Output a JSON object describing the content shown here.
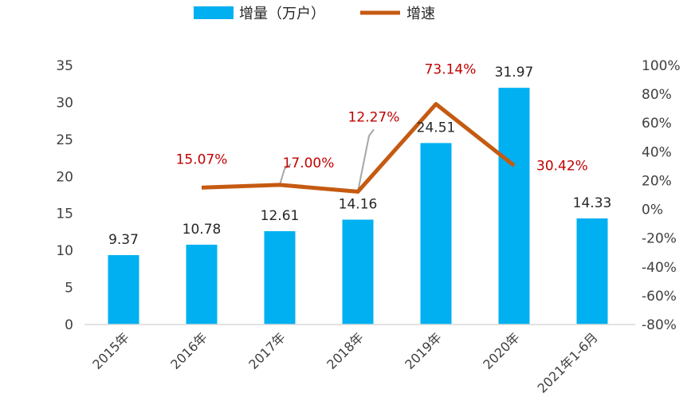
{
  "legend": {
    "bar_label": "增量（万户）",
    "line_label": "增速"
  },
  "colors": {
    "bar": "#00b0f0",
    "line": "#c55a11",
    "rate_label": "#c00000",
    "leader": "#a6a6a6",
    "axis": "#d9d9d9"
  },
  "chart_data": {
    "type": "bar",
    "categories": [
      "2015年",
      "2016年",
      "2017年",
      "2018年",
      "2019年",
      "2020年",
      "2021年1-6月"
    ],
    "series": [
      {
        "name": "增量（万户）",
        "type": "bar",
        "axis": "left",
        "values": [
          9.37,
          10.78,
          12.61,
          14.16,
          24.51,
          31.97,
          14.33
        ],
        "labels": [
          "9.37",
          "10.78",
          "12.61",
          "14.16",
          "24.51",
          "31.97",
          "14.33"
        ]
      },
      {
        "name": "增速",
        "type": "line",
        "axis": "right",
        "values": [
          null,
          15.07,
          17.0,
          12.27,
          73.14,
          30.42,
          null
        ],
        "labels": [
          "",
          "15.07%",
          "17.00%",
          "12.27%",
          "73.14%",
          "30.42%",
          ""
        ]
      }
    ],
    "y_left": {
      "min": 0,
      "max": 35,
      "ticks": [
        "0",
        "5",
        "10",
        "15",
        "20",
        "25",
        "30",
        "35"
      ]
    },
    "y_right": {
      "min": -80,
      "max": 100,
      "ticks": [
        "-80%",
        "-60%",
        "-40%",
        "-20%",
        "0%",
        "20%",
        "40%",
        "60%",
        "80%",
        "100%"
      ]
    },
    "legend_position": "top",
    "grid": false
  }
}
